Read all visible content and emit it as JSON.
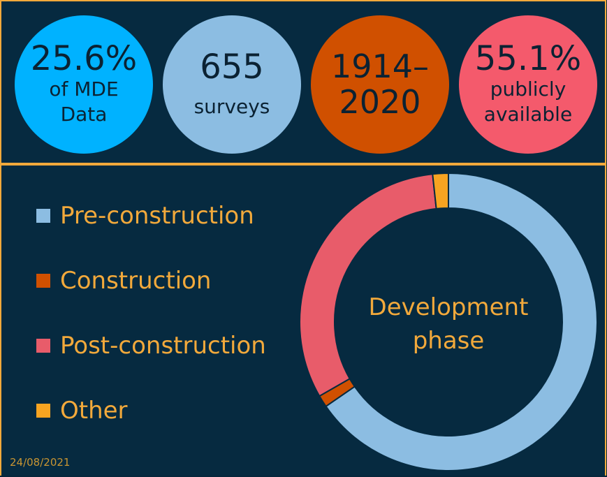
{
  "stats": [
    {
      "big": "25.6%",
      "line1": "of MDE",
      "line2": "Data",
      "color": "#00b2ff"
    },
    {
      "big": "655",
      "line1": "surveys",
      "color": "#8cbde2"
    },
    {
      "big_line1": "1914–",
      "big_line2": "2020",
      "color": "#d05000"
    },
    {
      "big": "55.1%",
      "line1": "publicly",
      "line2": "available",
      "color": "#f45a6c"
    }
  ],
  "chart_data": {
    "type": "pie",
    "style": "donut",
    "center_label": [
      "Development",
      "phase"
    ],
    "categories": [
      "Pre-construction",
      "Construction",
      "Post-construction",
      "Other"
    ],
    "values": [
      65.4,
      1.3,
      31.6,
      1.7
    ],
    "colors": [
      "#8cbde2",
      "#d05000",
      "#e85c6a",
      "#f7a421"
    ],
    "legend_position": "left"
  },
  "footer": {
    "date": "24/08/2021"
  },
  "colors": {
    "accent": "#f2a93b",
    "background": "#062a40"
  }
}
